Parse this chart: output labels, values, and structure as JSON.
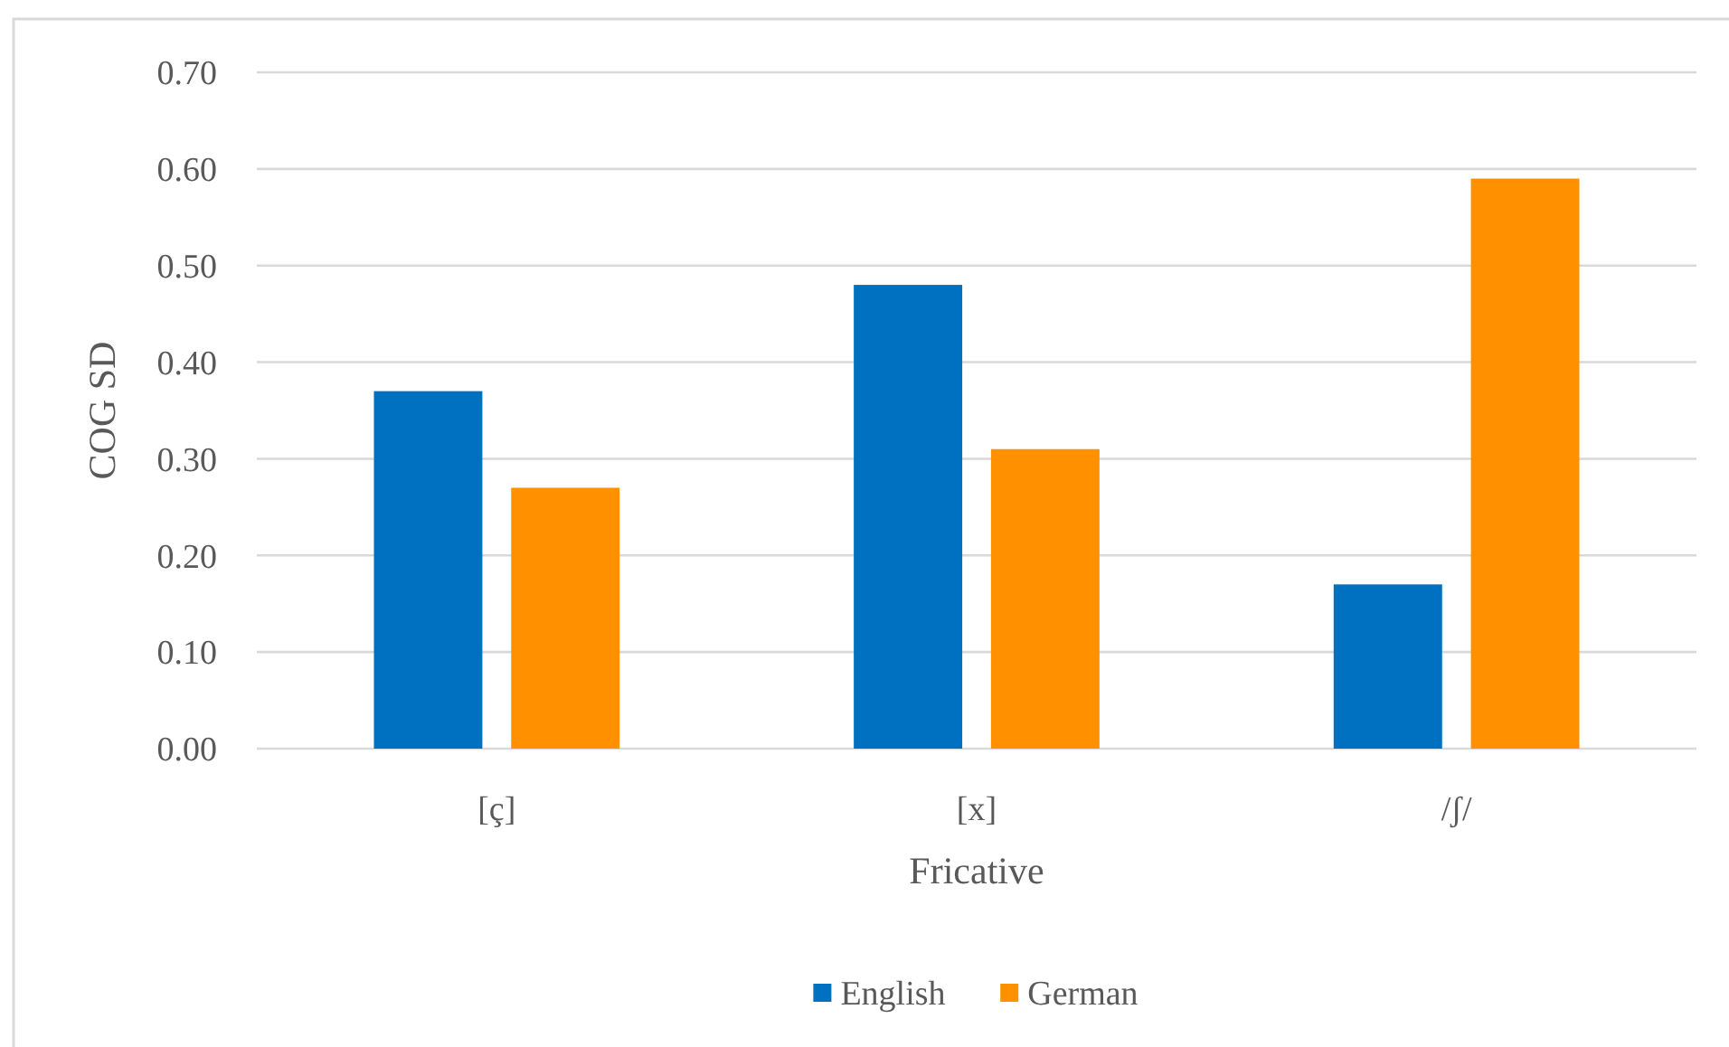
{
  "chart_data": {
    "type": "bar",
    "xlabel": "Fricative",
    "ylabel": "COG SD",
    "categories": [
      "[ç]",
      "[x]",
      "/ʃ/"
    ],
    "series": [
      {
        "name": "English",
        "color": "#0070c0",
        "values": [
          0.37,
          0.48,
          0.17
        ]
      },
      {
        "name": "German",
        "color": "#ff9100",
        "values": [
          0.27,
          0.31,
          0.59
        ]
      }
    ],
    "ylim": [
      0,
      0.7
    ],
    "yticks": [
      {
        "value": 0,
        "label": "0.00"
      },
      {
        "value": 0.1,
        "label": "0.10"
      },
      {
        "value": 0.2,
        "label": "0.20"
      },
      {
        "value": 0.3,
        "label": "0.30"
      },
      {
        "value": 0.4,
        "label": "0.40"
      },
      {
        "value": 0.5,
        "label": "0.50"
      },
      {
        "value": 0.6,
        "label": "0.60"
      },
      {
        "value": 0.7,
        "label": "0.70"
      }
    ],
    "grid": "y",
    "legend": "bottom"
  }
}
